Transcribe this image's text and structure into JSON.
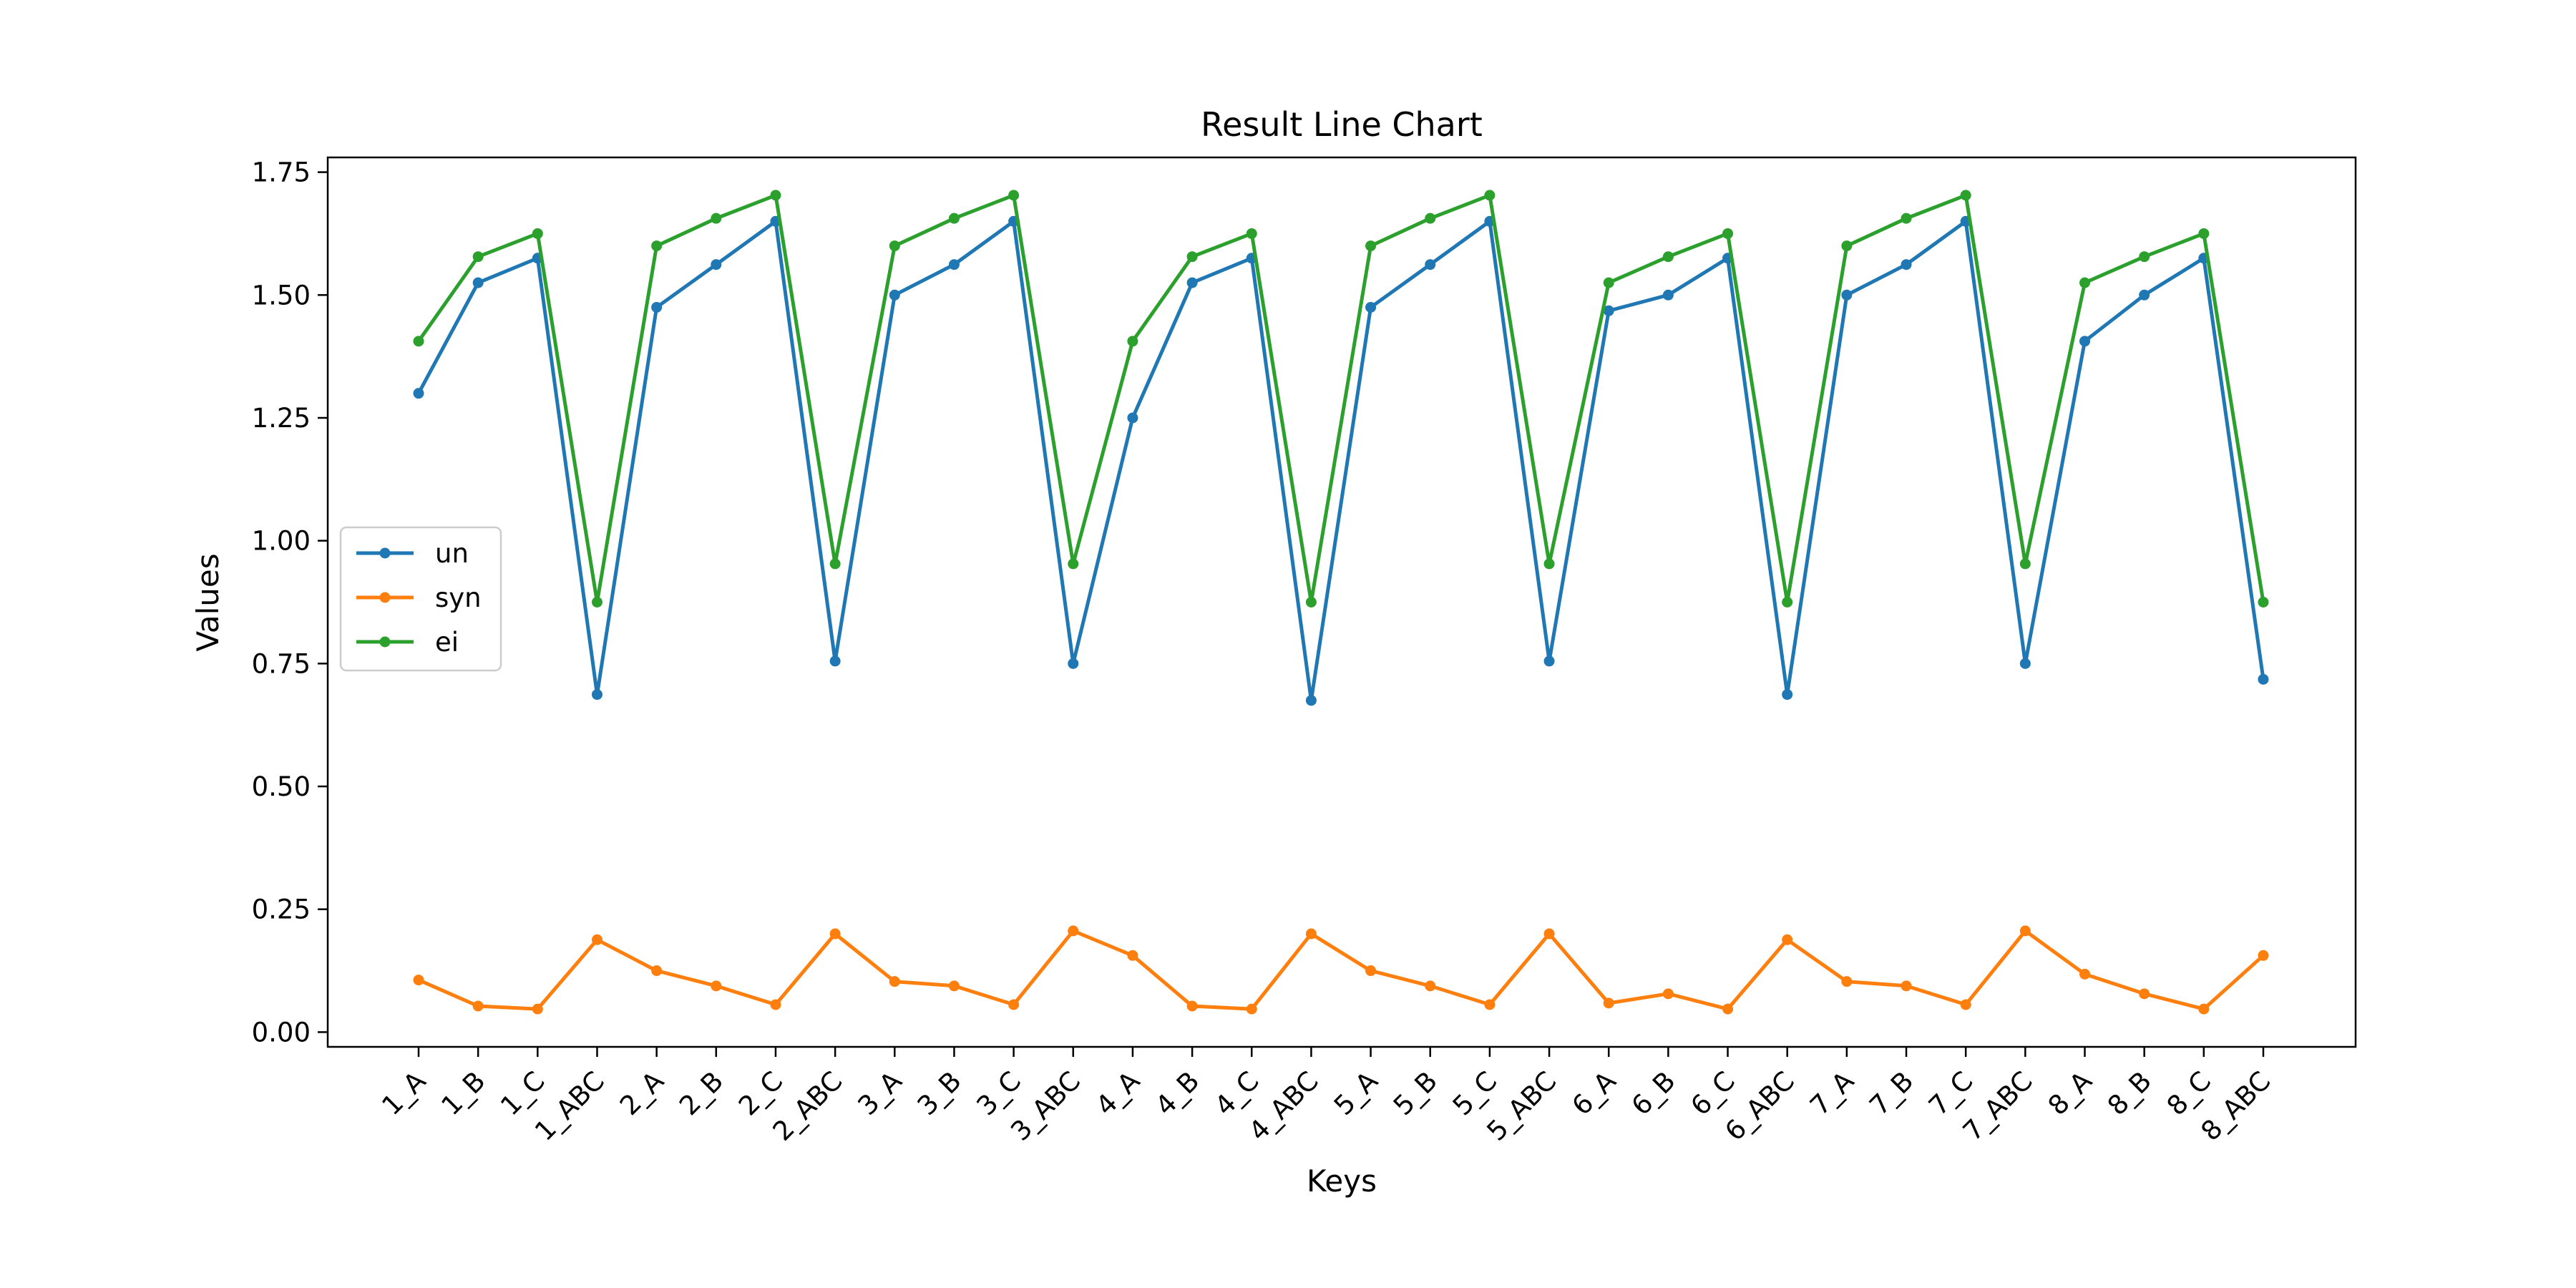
{
  "chart_data": {
    "type": "line",
    "title": "Result Line Chart",
    "xlabel": "Keys",
    "ylabel": "Values",
    "ylim": [
      -0.03,
      1.78
    ],
    "yticks": [
      0.0,
      0.25,
      0.5,
      0.75,
      1.0,
      1.25,
      1.5,
      1.75
    ],
    "ytick_labels": [
      "0.00",
      "0.25",
      "0.50",
      "0.75",
      "1.00",
      "1.25",
      "1.50",
      "1.75"
    ],
    "grid": false,
    "legend_position": "center-left",
    "categories": [
      "1_A",
      "1_B",
      "1_C",
      "1_ABC",
      "2_A",
      "2_B",
      "2_C",
      "2_ABC",
      "3_A",
      "3_B",
      "3_C",
      "3_ABC",
      "4_A",
      "4_B",
      "4_C",
      "4_ABC",
      "5_A",
      "5_B",
      "5_C",
      "5_ABC",
      "6_A",
      "6_B",
      "6_C",
      "6_ABC",
      "7_A",
      "7_B",
      "7_C",
      "7_ABC",
      "8_A",
      "8_B",
      "8_C",
      "8_ABC"
    ],
    "series": [
      {
        "name": "un",
        "color": "#1f77b4",
        "values": [
          1.3,
          1.525,
          1.575,
          0.687,
          1.475,
          1.562,
          1.65,
          0.755,
          1.5,
          1.562,
          1.65,
          0.75,
          1.25,
          1.525,
          1.575,
          0.675,
          1.475,
          1.562,
          1.65,
          0.755,
          1.468,
          1.5,
          1.575,
          0.687,
          1.5,
          1.562,
          1.65,
          0.75,
          1.406,
          1.5,
          1.575,
          0.718
        ]
      },
      {
        "name": "syn",
        "color": "#ff7f0e",
        "values": [
          0.106,
          0.053,
          0.047,
          0.188,
          0.125,
          0.094,
          0.056,
          0.2,
          0.103,
          0.094,
          0.056,
          0.206,
          0.156,
          0.053,
          0.047,
          0.2,
          0.125,
          0.094,
          0.056,
          0.2,
          0.059,
          0.078,
          0.047,
          0.188,
          0.103,
          0.094,
          0.056,
          0.206,
          0.118,
          0.078,
          0.047,
          0.156
        ]
      },
      {
        "name": "ei",
        "color": "#2ca02c",
        "values": [
          1.406,
          1.578,
          1.625,
          0.875,
          1.6,
          1.656,
          1.703,
          0.953,
          1.6,
          1.656,
          1.703,
          0.953,
          1.406,
          1.578,
          1.625,
          0.875,
          1.6,
          1.656,
          1.703,
          0.953,
          1.525,
          1.578,
          1.625,
          0.875,
          1.6,
          1.656,
          1.703,
          0.953,
          1.525,
          1.578,
          1.625,
          0.875
        ]
      }
    ]
  }
}
